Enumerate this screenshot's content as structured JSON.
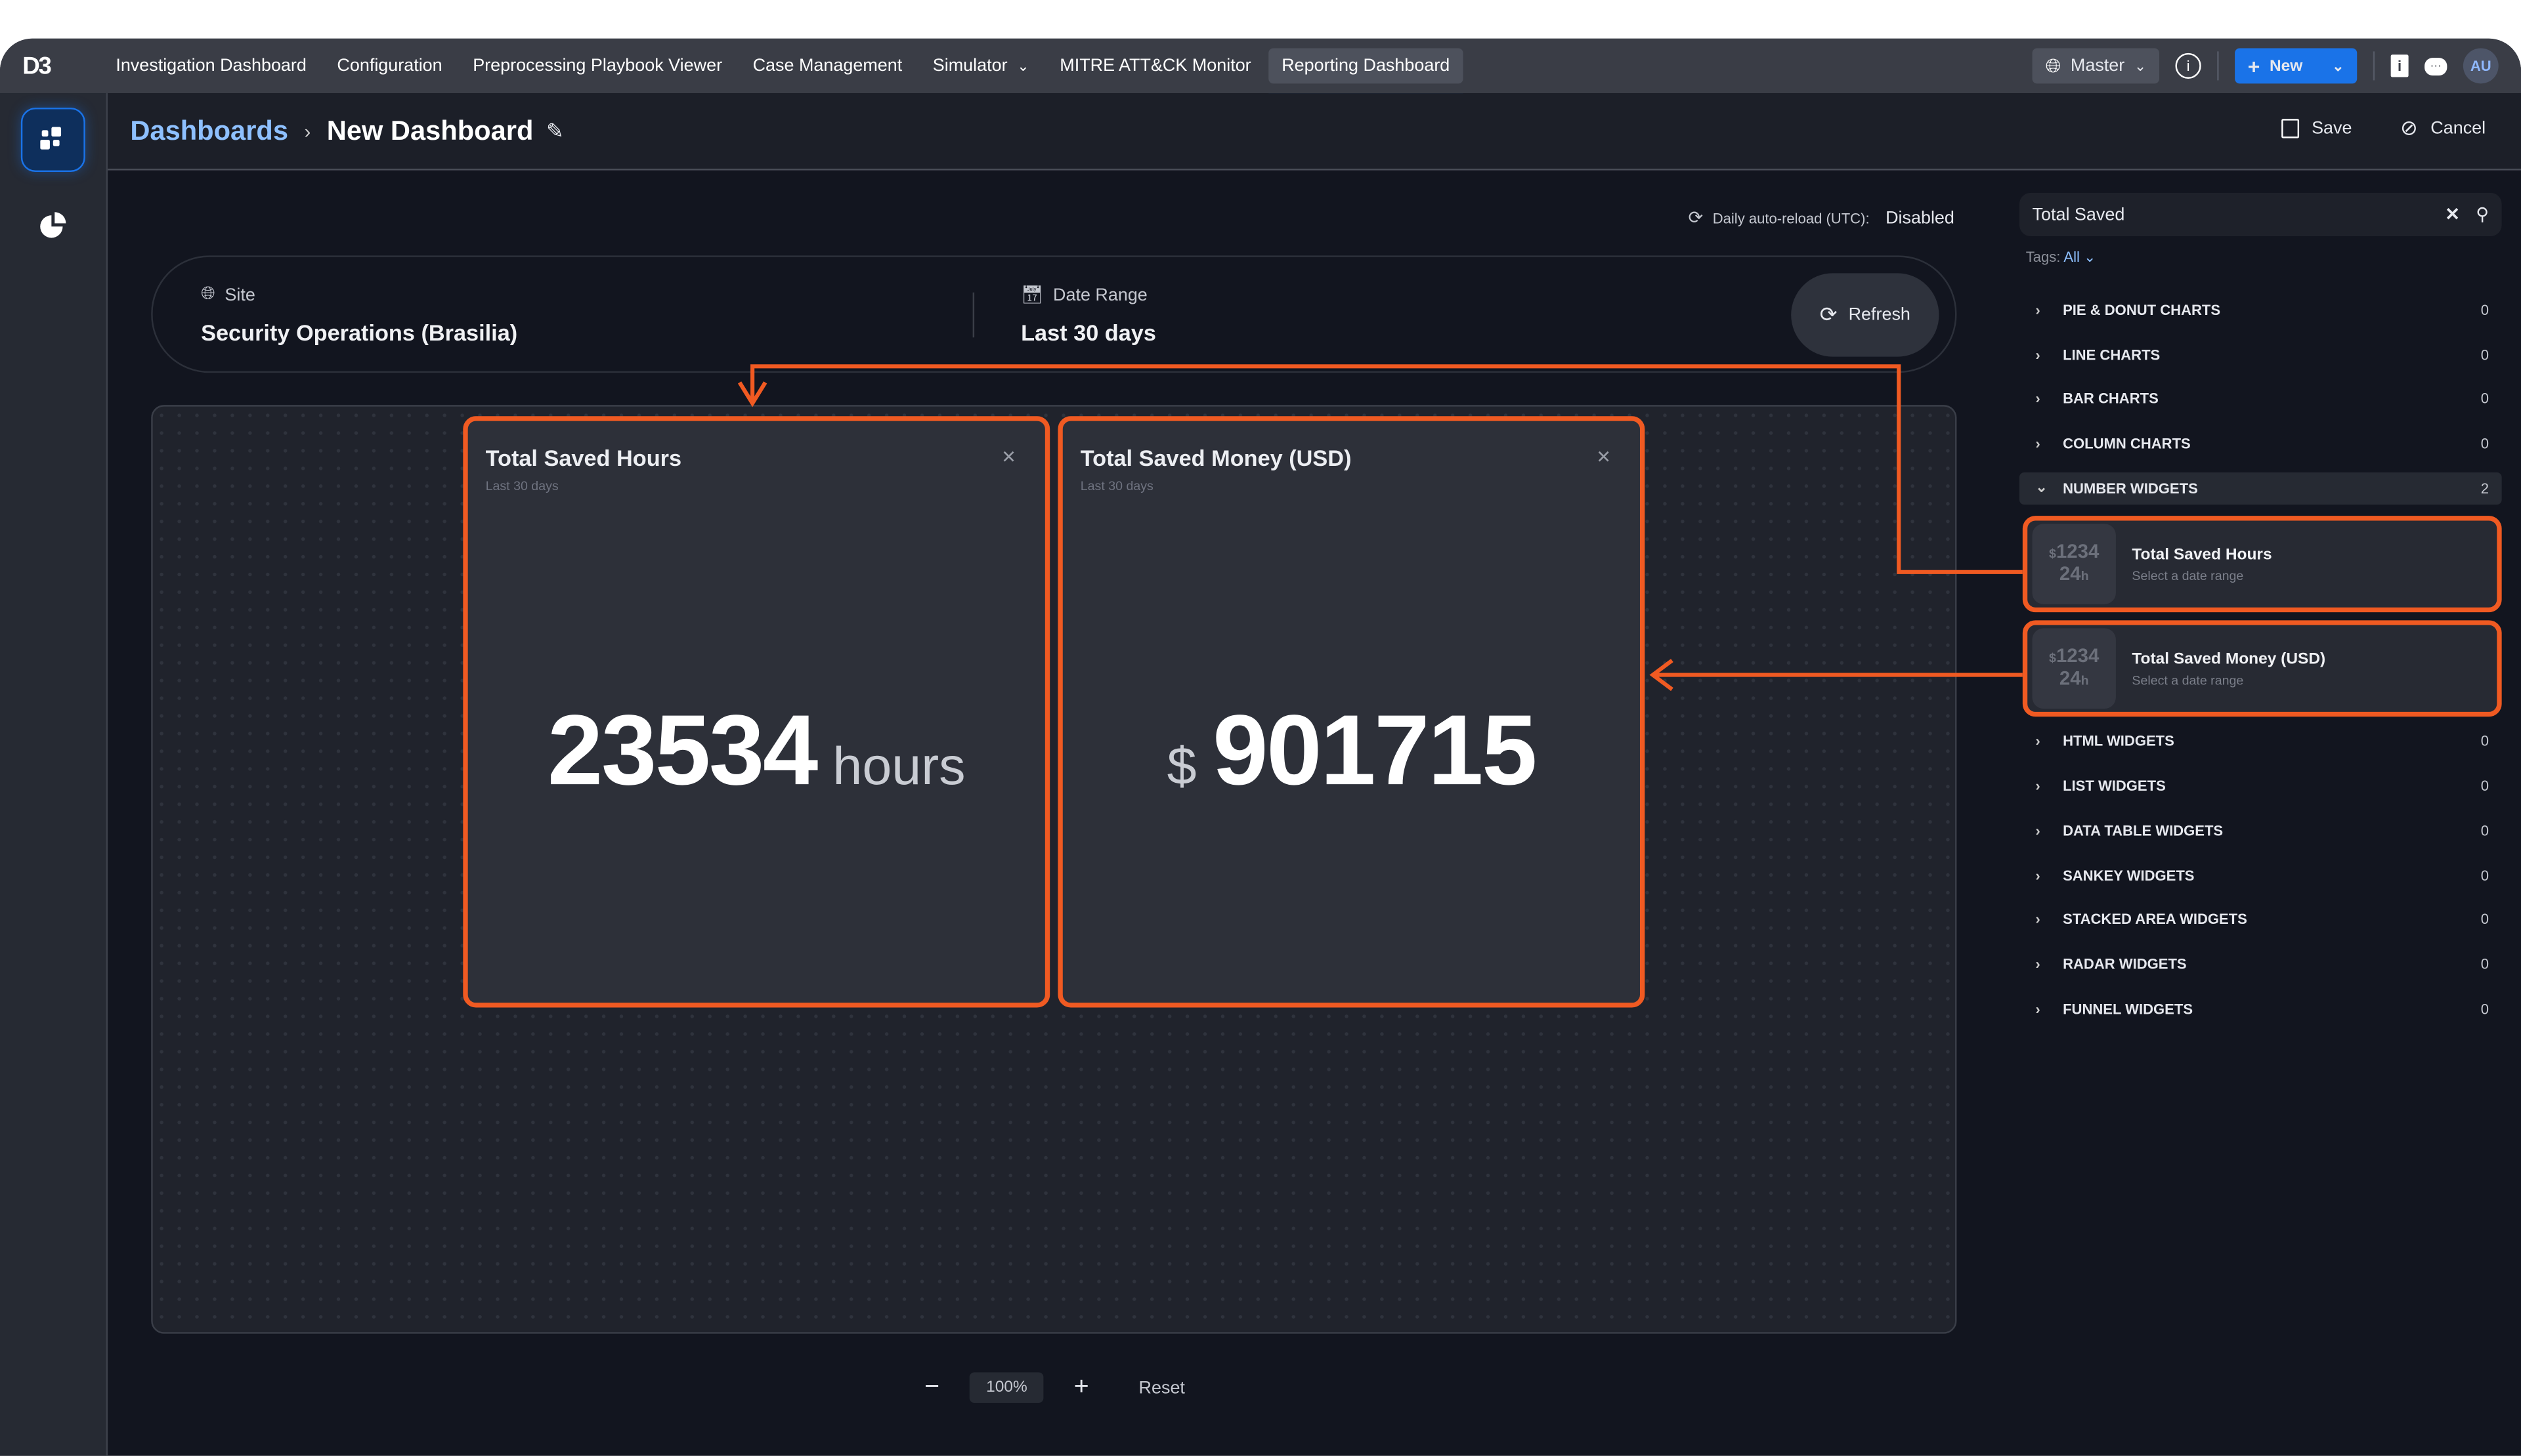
{
  "topnav": {
    "logo": "D3",
    "items": [
      {
        "label": "Investigation Dashboard"
      },
      {
        "label": "Configuration"
      },
      {
        "label": "Preprocessing Playbook Viewer"
      },
      {
        "label": "Case Management"
      },
      {
        "label": "Simulator"
      },
      {
        "label": "MITRE ATT&CK Monitor"
      },
      {
        "label": "Reporting Dashboard",
        "active": true
      }
    ],
    "master_label": "Master",
    "new_label": "New",
    "avatar": "AU"
  },
  "header": {
    "breadcrumb_root": "Dashboards",
    "title": "New Dashboard",
    "save_label": "Save",
    "cancel_label": "Cancel"
  },
  "autoreload": {
    "label": "Daily auto-reload (UTC):",
    "value": "Disabled"
  },
  "filters": {
    "site_label": "Site",
    "site_value": "Security Operations (Brasilia)",
    "date_label": "Date Range",
    "date_value": "Last 30 days",
    "refresh_label": "Refresh"
  },
  "widgets": [
    {
      "title": "Total Saved Hours",
      "subtitle": "Last 30 days",
      "prefix": "",
      "value": "23534",
      "unit": "hours"
    },
    {
      "title": "Total Saved Money (USD)",
      "subtitle": "Last 30 days",
      "prefix": "$",
      "value": "901715",
      "unit": ""
    }
  ],
  "zoom": {
    "value": "100%",
    "reset_label": "Reset"
  },
  "panel": {
    "search_value": "Total Saved",
    "tags_label": "Tags:",
    "tags_value": "All",
    "categories": [
      {
        "name": "PIE & DONUT CHARTS",
        "count": "0"
      },
      {
        "name": "LINE CHARTS",
        "count": "0"
      },
      {
        "name": "BAR CHARTS",
        "count": "0"
      },
      {
        "name": "COLUMN CHARTS",
        "count": "0"
      },
      {
        "name": "NUMBER WIDGETS",
        "count": "2",
        "expanded": true
      },
      {
        "name": "HTML WIDGETS",
        "count": "0"
      },
      {
        "name": "LIST WIDGETS",
        "count": "0"
      },
      {
        "name": "DATA TABLE WIDGETS",
        "count": "0"
      },
      {
        "name": "SANKEY WIDGETS",
        "count": "0"
      },
      {
        "name": "STACKED AREA WIDGETS",
        "count": "0"
      },
      {
        "name": "RADAR WIDGETS",
        "count": "0"
      },
      {
        "name": "FUNNEL WIDGETS",
        "count": "0"
      }
    ],
    "items": [
      {
        "title": "Total Saved Hours",
        "subtitle": "Select a date range",
        "thumb_top": "1234",
        "thumb_bottom": "24",
        "thumb_prefix": "$",
        "thumb_suffix": "h"
      },
      {
        "title": "Total Saved Money (USD)",
        "subtitle": "Select a date range",
        "thumb_top": "1234",
        "thumb_bottom": "24",
        "thumb_prefix": "$",
        "thumb_suffix": "h"
      }
    ]
  },
  "colors": {
    "accent": "#1a73e8",
    "highlight": "#f05a22",
    "link": "#8ec0ff"
  }
}
